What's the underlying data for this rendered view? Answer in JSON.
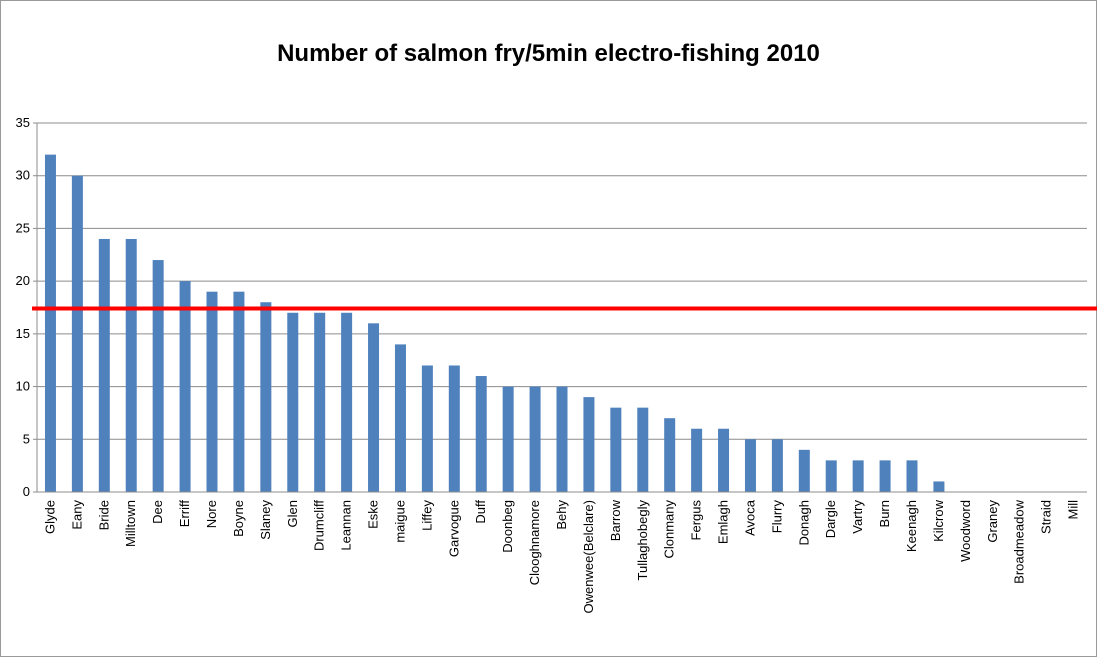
{
  "chart_data": {
    "type": "bar",
    "title": "Number of salmon fry/5min electro-fishing 2010",
    "xlabel": "",
    "ylabel": "",
    "ylim": [
      0,
      35
    ],
    "yticks": [
      "0",
      "5",
      "10",
      "15",
      "20",
      "25",
      "30",
      "35"
    ],
    "grid": true,
    "legend": "none",
    "bar_color": "#4f81bd",
    "reference_line": {
      "value": 17.4,
      "color": "#ff0000"
    },
    "categories": [
      "Glyde",
      "Eany",
      "Bride",
      "Milltown",
      "Dee",
      "Erriff",
      "Nore",
      "Boyne",
      "Slaney",
      "Glen",
      "Drumcliff",
      "Leannan",
      "Eske",
      "maigue",
      "Liffey",
      "Garvogue",
      "Duff",
      "Doonbeg",
      "Clooghnamore",
      "Behy",
      "Owenwee(Belclare)",
      "Barrow",
      "Tullaghobegly",
      "Clonmany",
      "Fergus",
      "Emlagh",
      "Avoca",
      "Flurry",
      "Donagh",
      "Dargle",
      "Vartry",
      "Burn",
      "Keenagh",
      "Kilcrow",
      "Woodword",
      "Graney",
      "Broadmeadow",
      "Straid",
      "Mill"
    ],
    "values": [
      32,
      30,
      24,
      24,
      22,
      20,
      19,
      19,
      18,
      17,
      17,
      17,
      16,
      14,
      12,
      12,
      11,
      10,
      10,
      10,
      9,
      8,
      8,
      7,
      6,
      6,
      5,
      5,
      4,
      3,
      3,
      3,
      3,
      1,
      0,
      0,
      0,
      0,
      0
    ]
  }
}
